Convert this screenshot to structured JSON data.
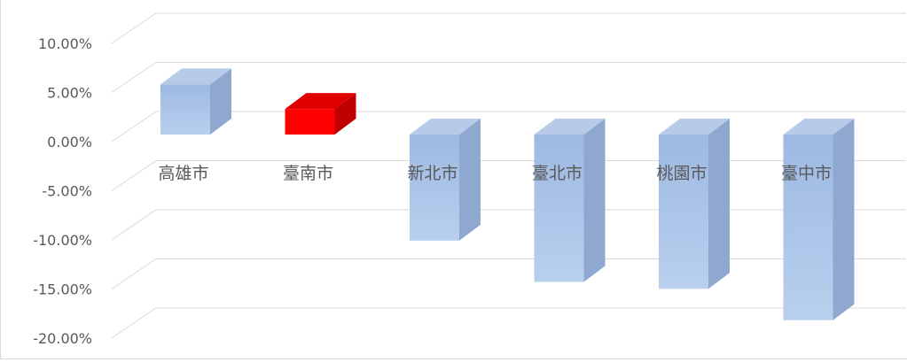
{
  "chart_data": {
    "type": "bar",
    "style": "3d-column",
    "categories": [
      "高雄市",
      "臺南市",
      "新北市",
      "臺北市",
      "桃園市",
      "臺中市"
    ],
    "values": [
      5.1,
      2.6,
      -10.8,
      -15.0,
      -15.7,
      -18.9
    ],
    "value_unit": "%",
    "bar_colors": [
      "#a9c4e8",
      "#ff0000",
      "#a9c4e8",
      "#a9c4e8",
      "#a9c4e8",
      "#a9c4e8"
    ],
    "yticks": [
      "10.00%",
      "5.00%",
      "0.00%",
      "-5.00%",
      "-10.00%",
      "-15.00%",
      "-20.00%"
    ],
    "ylim": [
      -20,
      10
    ],
    "grid": true,
    "title": "",
    "xlabel": "",
    "ylabel": ""
  }
}
